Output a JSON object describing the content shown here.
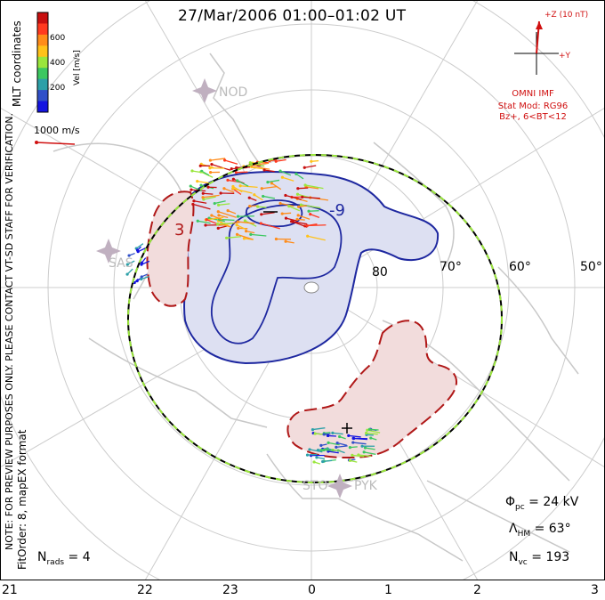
{
  "title": "27/Mar/2006 01:00–01:02 UT",
  "side_labels": {
    "coords": "MLT coordinates",
    "note": "NOTE: FOR PREVIEW PURPOSES ONLY. PLEASE CONTACT VT-SD STAFF FOR VERIFICATION.",
    "fit": "FitOrder: 8, mapEX format"
  },
  "colorbar": {
    "label": "Vel [m/s]",
    "ticks": [
      "600",
      "400",
      "200"
    ],
    "colors": [
      "#c81010",
      "#ff3a20",
      "#ff8c1a",
      "#ffc21a",
      "#9ae63c",
      "#3cc860",
      "#2ca0a8",
      "#3050c8",
      "#1414e0"
    ]
  },
  "reference_vector": "1000 m/s",
  "imf": {
    "z_label": "+Z (10 nT)",
    "y_label": "+Y",
    "source": "OMNI IMF",
    "model_line1": "Stat Mod: RG96",
    "model_line2": "Bz+, 6<BT<12"
  },
  "latitude_labels": [
    "80",
    "70°",
    "60°",
    "50°"
  ],
  "contour_labels": [
    "-9",
    "3"
  ],
  "stations": [
    "NOD",
    "SAS",
    "STO",
    "PYK"
  ],
  "stats": {
    "phi_pc": "24 kV",
    "lambda_hm": "63°",
    "n_vc": "193",
    "n_rads": "4"
  },
  "mlt_ticks": [
    "21",
    "22",
    "23",
    "0",
    "1",
    "2",
    "3"
  ],
  "colors": {
    "negative_cell_fill": "#dde0f2",
    "negative_cell_line": "#1e28a0",
    "positive_cell_fill": "#f2dcdc",
    "positive_cell_line": "#b01818",
    "grid": "#cccccc",
    "coast": "#c8c8c8",
    "boundary": "#000000",
    "boundary_dash": "#9ae63c"
  },
  "chart_data": {
    "type": "map",
    "projection": "polar MLT/MLAT, north pole",
    "latitude_rings": [
      80,
      70,
      60,
      50
    ],
    "heppner_maynard_boundary_mlat": 63,
    "cross_polar_cap_potential_kV": 24,
    "vector_count": 193,
    "radars": 4,
    "potential_contours": [
      {
        "sign": "negative",
        "label": "-9"
      },
      {
        "sign": "positive",
        "label": "3"
      }
    ]
  }
}
